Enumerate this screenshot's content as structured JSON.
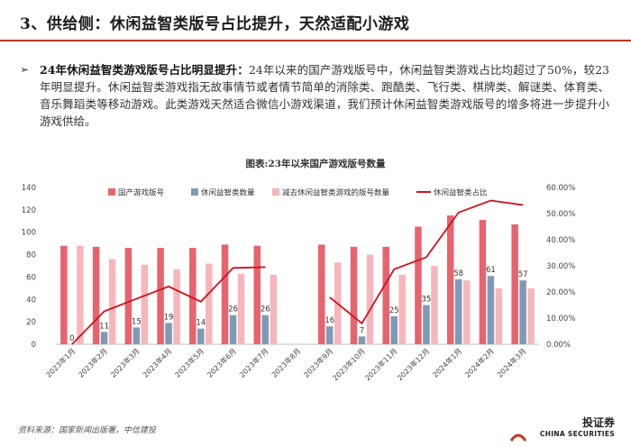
{
  "header": {
    "title": "3、供给侧：休闲益智类版号占比提升，天然适配小游戏"
  },
  "body_text": {
    "bullet": "➢",
    "lead": "24年休闲益智类游戏版号占比明显提升：",
    "text": "24年以来的国产游戏版号中，休闲益智类游戏占比均超过了50%，较23年明显提升。休闲益智类游戏指无故事情节或者情节简单的消除类、跑酷类、飞行类、棋牌类、解谜类、体育类、音乐舞蹈类等移动游戏。此类游戏天然适合微信小游戏渠道，我们预计休闲益智类游戏版号的增多将进一步提升小游戏供给。"
  },
  "chart_data": {
    "type": "bar",
    "title": "图表:23年以来国产游戏版号数量",
    "categories": [
      "2023年1月",
      "2023年2月",
      "2023年3月",
      "2023年4月",
      "2023年5月",
      "2023年6月",
      "2023年7月",
      "2023年8月",
      "2023年9月",
      "2023年10月",
      "2023年11月",
      "2023年12月",
      "2024年1月",
      "2024年2月",
      "2024年3月"
    ],
    "series": [
      {
        "name": "国产游戏版号",
        "color": "#e8636d",
        "values": [
          88,
          87,
          86,
          86,
          86,
          89,
          88,
          null,
          89,
          87,
          87,
          105,
          115,
          111,
          107
        ]
      },
      {
        "name": "休闲益智类数量",
        "color": "#7f9ab5",
        "values": [
          0,
          11,
          15,
          19,
          14,
          26,
          26,
          null,
          16,
          7,
          25,
          35,
          58,
          61,
          57
        ]
      },
      {
        "name": "减去休闲益智类游戏的版号数量",
        "color": "#f6b6bb",
        "values": [
          88,
          76,
          71,
          67,
          72,
          63,
          62,
          null,
          73,
          80,
          62,
          70,
          57,
          50,
          50
        ]
      },
      {
        "name": "休闲益智类占比",
        "color": "#d0121c",
        "axis": "right",
        "values": [
          0.0,
          12.6,
          17.4,
          22.1,
          16.3,
          29.2,
          29.5,
          null,
          18.0,
          8.0,
          28.7,
          33.3,
          50.4,
          55.0,
          53.3
        ]
      }
    ],
    "bar_labels": [
      "0",
      "11",
      "15",
      "19",
      "14",
      "26",
      "26",
      "",
      "16",
      "7",
      "25",
      "35",
      "58",
      "61",
      "57"
    ],
    "y_left": {
      "ticks": [
        0,
        20,
        40,
        60,
        80,
        100,
        120,
        140
      ],
      "ylim": [
        0,
        140
      ]
    },
    "y_right": {
      "ticks": [
        "0.00%",
        "10.00%",
        "20.00%",
        "30.00%",
        "40.00%",
        "50.00%",
        "60.00%"
      ],
      "ylim": [
        0,
        60
      ]
    },
    "legend_position": "top"
  },
  "footer": {
    "source": "资料来源：国家新闻出版署，中信建投",
    "brand_cn": "投证券",
    "brand_en": "CHINA SECURITIES"
  }
}
